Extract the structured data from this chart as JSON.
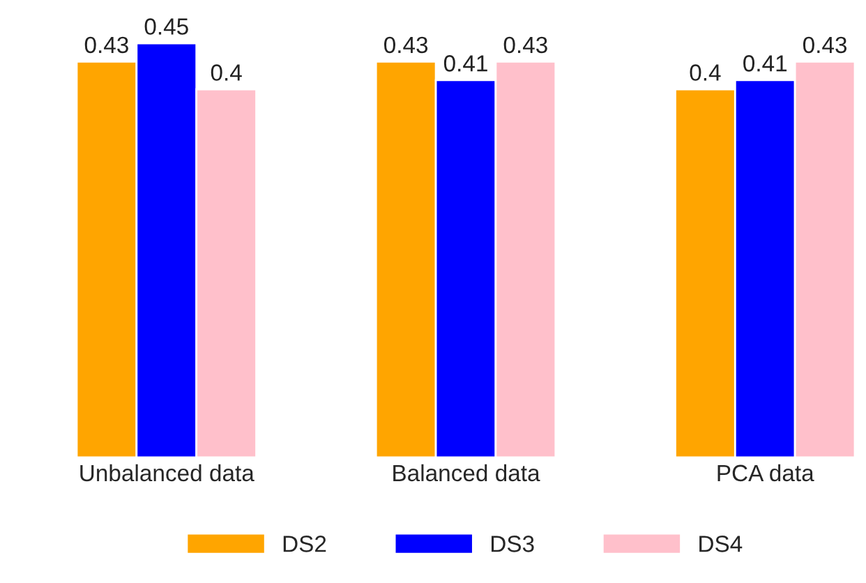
{
  "chart_data": {
    "type": "bar",
    "categories": [
      "Unbalanced data",
      "Balanced data",
      "PCA data"
    ],
    "series": [
      {
        "name": "DS2",
        "color": "#ffa500",
        "values": [
          0.43,
          0.43,
          0.4
        ]
      },
      {
        "name": "DS3",
        "color": "#0000ff",
        "values": [
          0.45,
          0.41,
          0.41
        ]
      },
      {
        "name": "DS4",
        "color": "#ffc0cb",
        "values": [
          0.4,
          0.43,
          0.43
        ]
      }
    ],
    "ylim": [
      0,
      0.45
    ],
    "data_labels": true,
    "legend": "bottom",
    "grid": false,
    "tick_labels": "x"
  }
}
